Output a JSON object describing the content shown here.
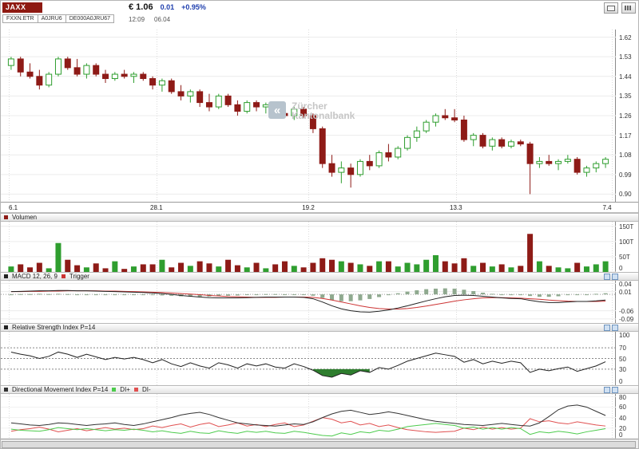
{
  "header": {
    "symbol": "JAXX",
    "codes": [
      "FXXN.ETR",
      "A0JRU6",
      "DE000A0JRU67"
    ],
    "price": "€ 1.06",
    "change": "0.01",
    "change_percent": "+0.95%",
    "time": "12:09",
    "date": "06.04"
  },
  "watermark": {
    "line1": "Zürcher",
    "line2": "Kantonalbank"
  },
  "panels": {
    "volume": {
      "title": "Volumen"
    },
    "macd": {
      "title": "MACD 12, 26, 9",
      "trigger_label": "Trigger"
    },
    "rsi": {
      "title": "Relative Strength Index P=14"
    },
    "dmi": {
      "title": "Directional Movement Index P=14",
      "di_plus_label": "DI+",
      "di_minus_label": "DI-"
    }
  },
  "colors": {
    "up": "#2f9e2f",
    "down": "#8e1b17",
    "vol_up": "#2f9e2f",
    "vol_down": "#8e1b17",
    "macd_line": "#222222",
    "macd_trigger": "#cc3333",
    "macd_hist": "#8fa98f",
    "rsi_line": "#222222",
    "rsi_fill": "#2e7d2e",
    "adx_line": "#333333",
    "di_plus": "#4ccb4c",
    "di_minus": "#e05050",
    "grid": "#ececec",
    "change_text": "#1f3fae"
  },
  "chart_data": [
    {
      "name": "price",
      "type": "candlestick",
      "ylim": [
        0.865,
        1.655
      ],
      "yticks": [
        [
          1.62,
          "1.62"
        ],
        [
          1.53,
          "1.53"
        ],
        [
          1.44,
          "1.44"
        ],
        [
          1.35,
          "1.35"
        ],
        [
          1.26,
          "1.26"
        ],
        [
          1.17,
          "1.17"
        ],
        [
          1.08,
          "1.08"
        ],
        [
          0.99,
          "0.99"
        ],
        [
          0.9,
          "0.90"
        ]
      ],
      "x_ticks": [
        {
          "label": "6.1",
          "f": 0.013
        },
        {
          "label": "28.1",
          "f": 0.253
        },
        {
          "label": "19.2",
          "f": 0.5
        },
        {
          "label": "13.3",
          "f": 0.74
        },
        {
          "label": "7.4",
          "f": 0.993
        }
      ],
      "candles": [
        [
          1.49,
          1.53,
          1.47,
          1.52
        ],
        [
          1.52,
          1.53,
          1.44,
          1.46
        ],
        [
          1.46,
          1.5,
          1.43,
          1.44
        ],
        [
          1.44,
          1.47,
          1.38,
          1.4
        ],
        [
          1.4,
          1.46,
          1.39,
          1.45
        ],
        [
          1.45,
          1.53,
          1.44,
          1.52
        ],
        [
          1.52,
          1.53,
          1.47,
          1.48
        ],
        [
          1.48,
          1.52,
          1.44,
          1.45
        ],
        [
          1.45,
          1.5,
          1.43,
          1.49
        ],
        [
          1.49,
          1.5,
          1.44,
          1.45
        ],
        [
          1.45,
          1.47,
          1.41,
          1.43
        ],
        [
          1.43,
          1.46,
          1.42,
          1.45
        ],
        [
          1.45,
          1.47,
          1.43,
          1.44
        ],
        [
          1.44,
          1.46,
          1.41,
          1.45
        ],
        [
          1.45,
          1.46,
          1.42,
          1.43
        ],
        [
          1.43,
          1.44,
          1.38,
          1.4
        ],
        [
          1.4,
          1.43,
          1.37,
          1.42
        ],
        [
          1.42,
          1.43,
          1.36,
          1.37
        ],
        [
          1.37,
          1.4,
          1.33,
          1.35
        ],
        [
          1.35,
          1.38,
          1.32,
          1.37
        ],
        [
          1.37,
          1.38,
          1.3,
          1.32
        ],
        [
          1.32,
          1.36,
          1.28,
          1.3
        ],
        [
          1.3,
          1.36,
          1.29,
          1.35
        ],
        [
          1.35,
          1.36,
          1.3,
          1.31
        ],
        [
          1.31,
          1.33,
          1.26,
          1.28
        ],
        [
          1.28,
          1.33,
          1.27,
          1.32
        ],
        [
          1.32,
          1.33,
          1.28,
          1.3
        ],
        [
          1.3,
          1.32,
          1.27,
          1.31
        ],
        [
          1.31,
          1.32,
          1.26,
          1.27
        ],
        [
          1.27,
          1.31,
          1.25,
          1.26
        ],
        [
          1.26,
          1.3,
          1.24,
          1.29
        ],
        [
          1.29,
          1.3,
          1.25,
          1.26
        ],
        [
          1.26,
          1.27,
          1.18,
          1.2
        ],
        [
          1.2,
          1.21,
          1.02,
          1.04
        ],
        [
          1.04,
          1.08,
          0.98,
          1.0
        ],
        [
          1.0,
          1.05,
          0.95,
          1.02
        ],
        [
          1.02,
          1.04,
          0.93,
          0.99
        ],
        [
          0.99,
          1.06,
          0.98,
          1.05
        ],
        [
          1.05,
          1.08,
          1.01,
          1.03
        ],
        [
          1.03,
          1.1,
          1.02,
          1.09
        ],
        [
          1.09,
          1.13,
          1.05,
          1.07
        ],
        [
          1.07,
          1.12,
          1.06,
          1.11
        ],
        [
          1.11,
          1.17,
          1.1,
          1.16
        ],
        [
          1.16,
          1.21,
          1.14,
          1.19
        ],
        [
          1.19,
          1.24,
          1.18,
          1.23
        ],
        [
          1.23,
          1.27,
          1.21,
          1.26
        ],
        [
          1.26,
          1.29,
          1.24,
          1.25
        ],
        [
          1.25,
          1.29,
          1.23,
          1.24
        ],
        [
          1.24,
          1.26,
          1.14,
          1.15
        ],
        [
          1.15,
          1.18,
          1.12,
          1.17
        ],
        [
          1.17,
          1.18,
          1.11,
          1.12
        ],
        [
          1.12,
          1.16,
          1.1,
          1.15
        ],
        [
          1.15,
          1.16,
          1.11,
          1.12
        ],
        [
          1.12,
          1.15,
          1.11,
          1.14
        ],
        [
          1.14,
          1.15,
          1.12,
          1.13
        ],
        [
          1.13,
          1.14,
          0.9,
          1.04
        ],
        [
          1.04,
          1.07,
          1.02,
          1.05
        ],
        [
          1.05,
          1.08,
          1.03,
          1.04
        ],
        [
          1.04,
          1.06,
          1.01,
          1.05
        ],
        [
          1.05,
          1.08,
          1.04,
          1.06
        ],
        [
          1.06,
          1.07,
          0.99,
          1.0
        ],
        [
          1.0,
          1.03,
          0.98,
          1.02
        ],
        [
          1.02,
          1.05,
          1.0,
          1.04
        ],
        [
          1.04,
          1.07,
          1.02,
          1.06
        ]
      ]
    },
    {
      "name": "volume",
      "type": "bar",
      "ylim": [
        0,
        165
      ],
      "yticks": [
        [
          150,
          "150T"
        ],
        [
          100,
          "100T"
        ],
        [
          50,
          "50T"
        ],
        [
          0,
          "0"
        ]
      ],
      "values": [
        18,
        25,
        15,
        30,
        12,
        95,
        40,
        22,
        15,
        28,
        12,
        35,
        10,
        18,
        25,
        25,
        40,
        15,
        30,
        20,
        35,
        28,
        18,
        40,
        22,
        15,
        30,
        12,
        25,
        35,
        20,
        15,
        30,
        45,
        40,
        35,
        30,
        25,
        20,
        35,
        35,
        18,
        30,
        25,
        40,
        55,
        35,
        28,
        45,
        20,
        30,
        18,
        25,
        15,
        20,
        125,
        35,
        20,
        15,
        12,
        30,
        18,
        25,
        35
      ]
    },
    {
      "name": "macd",
      "type": "line",
      "ylim": [
        -0.105,
        0.05
      ],
      "yticks": [
        [
          0.04,
          "0.04"
        ],
        [
          0.01,
          "0.01"
        ],
        [
          -0.06,
          "-0.06"
        ],
        [
          -0.09,
          "-0.09"
        ]
      ],
      "series": [
        {
          "name": "MACD",
          "values": [
            0.01,
            0.011,
            0.012,
            0.013,
            0.013,
            0.014,
            0.014,
            0.013,
            0.013,
            0.012,
            0.011,
            0.01,
            0.009,
            0.008,
            0.007,
            0.005,
            0.003,
            0.0,
            -0.004,
            -0.007,
            -0.01,
            -0.012,
            -0.013,
            -0.013,
            -0.013,
            -0.012,
            -0.011,
            -0.01,
            -0.01,
            -0.01,
            -0.01,
            -0.011,
            -0.016,
            -0.028,
            -0.042,
            -0.053,
            -0.06,
            -0.064,
            -0.065,
            -0.062,
            -0.057,
            -0.05,
            -0.042,
            -0.033,
            -0.024,
            -0.016,
            -0.009,
            -0.004,
            -0.003,
            -0.004,
            -0.007,
            -0.01,
            -0.013,
            -0.015,
            -0.016,
            -0.022,
            -0.027,
            -0.03,
            -0.03,
            -0.028,
            -0.026,
            -0.026,
            -0.024,
            -0.021
          ]
        },
        {
          "name": "Trigger",
          "values": [
            0.01,
            0.01,
            0.011,
            0.011,
            0.012,
            0.012,
            0.013,
            0.013,
            0.013,
            0.013,
            0.012,
            0.012,
            0.011,
            0.01,
            0.009,
            0.008,
            0.007,
            0.005,
            0.003,
            0.001,
            -0.001,
            -0.004,
            -0.006,
            -0.008,
            -0.009,
            -0.01,
            -0.011,
            -0.011,
            -0.011,
            -0.01,
            -0.01,
            -0.01,
            -0.011,
            -0.015,
            -0.021,
            -0.028,
            -0.035,
            -0.042,
            -0.048,
            -0.052,
            -0.054,
            -0.054,
            -0.052,
            -0.048,
            -0.043,
            -0.037,
            -0.031,
            -0.025,
            -0.02,
            -0.016,
            -0.013,
            -0.012,
            -0.012,
            -0.013,
            -0.014,
            -0.016,
            -0.018,
            -0.021,
            -0.023,
            -0.025,
            -0.026,
            -0.026,
            -0.026,
            -0.025
          ]
        }
      ]
    },
    {
      "name": "rsi",
      "type": "line",
      "ylim": [
        0,
        100
      ],
      "yticks": [
        [
          100,
          "100"
        ],
        [
          70,
          "70"
        ],
        [
          50,
          "50"
        ],
        [
          30,
          "30"
        ],
        [
          0,
          "0"
        ]
      ],
      "thresholds": [
        70,
        50,
        30
      ],
      "oversold_level": 30,
      "values": [
        62,
        58,
        55,
        50,
        54,
        62,
        58,
        52,
        58,
        53,
        48,
        52,
        49,
        52,
        48,
        42,
        48,
        40,
        35,
        42,
        36,
        32,
        42,
        38,
        32,
        40,
        36,
        40,
        34,
        32,
        40,
        35,
        28,
        18,
        15,
        22,
        19,
        27,
        24,
        33,
        30,
        37,
        45,
        50,
        55,
        60,
        57,
        54,
        43,
        48,
        40,
        45,
        41,
        45,
        42,
        24,
        30,
        27,
        31,
        34,
        26,
        31,
        36,
        44
      ]
    },
    {
      "name": "dmi",
      "type": "line",
      "ylim": [
        0,
        85
      ],
      "yticks": [
        [
          80,
          "80"
        ],
        [
          60,
          "60"
        ],
        [
          40,
          "40"
        ],
        [
          20,
          "20"
        ],
        [
          0,
          "0"
        ]
      ],
      "series": [
        {
          "name": "ADX",
          "values": [
            30,
            28,
            26,
            25,
            27,
            30,
            29,
            27,
            25,
            27,
            28,
            30,
            27,
            25,
            28,
            32,
            36,
            40,
            45,
            48,
            50,
            46,
            40,
            35,
            30,
            28,
            26,
            25,
            24,
            26,
            28,
            27,
            32,
            40,
            47,
            52,
            54,
            50,
            46,
            48,
            51,
            48,
            44,
            40,
            36,
            33,
            31,
            29,
            27,
            26,
            25,
            27,
            29,
            27,
            25,
            24,
            30,
            42,
            55,
            62,
            64,
            60,
            52,
            44
          ]
        },
        {
          "name": "DI+",
          "values": [
            18,
            16,
            15,
            14,
            17,
            21,
            19,
            17,
            19,
            17,
            15,
            17,
            16,
            18,
            16,
            13,
            15,
            12,
            10,
            14,
            11,
            10,
            15,
            12,
            10,
            14,
            12,
            14,
            11,
            10,
            14,
            12,
            9,
            6,
            5,
            11,
            8,
            13,
            11,
            16,
            14,
            18,
            23,
            25,
            27,
            29,
            27,
            25,
            20,
            22,
            18,
            21,
            18,
            21,
            19,
            8,
            13,
            11,
            14,
            12,
            9,
            13,
            16,
            19
          ]
        },
        {
          "name": "DI-",
          "values": [
            14,
            17,
            19,
            22,
            18,
            13,
            16,
            19,
            15,
            18,
            21,
            18,
            20,
            17,
            19,
            24,
            21,
            25,
            28,
            22,
            27,
            30,
            23,
            26,
            30,
            24,
            27,
            23,
            27,
            30,
            23,
            26,
            33,
            40,
            37,
            30,
            33,
            26,
            29,
            23,
            26,
            21,
            17,
            15,
            13,
            12,
            13,
            14,
            20,
            17,
            22,
            18,
            21,
            18,
            20,
            38,
            32,
            34,
            30,
            28,
            32,
            29,
            26,
            24
          ]
        }
      ]
    }
  ]
}
